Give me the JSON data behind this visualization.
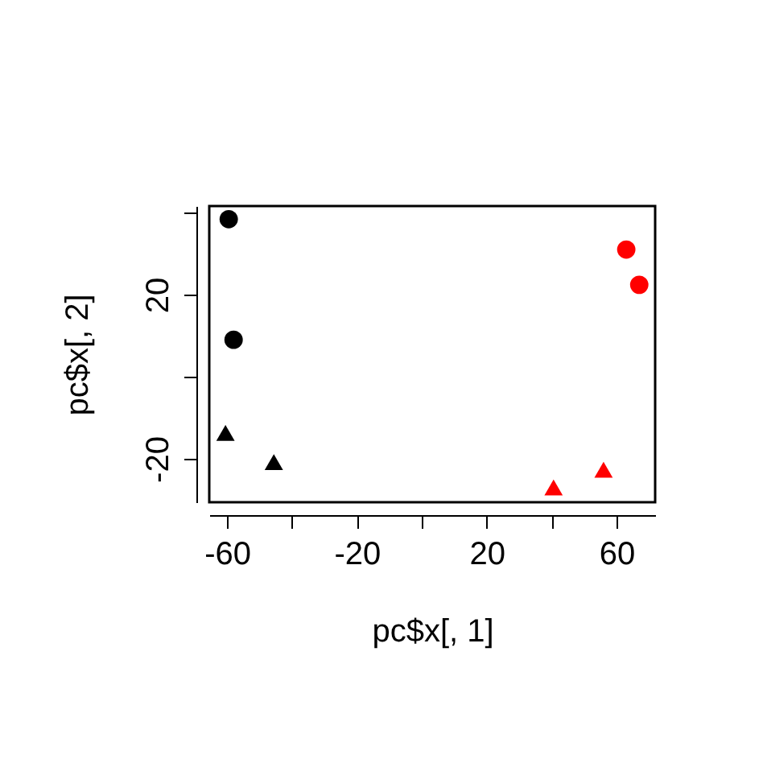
{
  "chart_data": {
    "type": "scatter",
    "xlabel": "pc$x[, 1]",
    "ylabel": "pc$x[, 2]",
    "xlim": [
      -65.5,
      71.9
    ],
    "ylim": [
      -30.6,
      41.6
    ],
    "xticks": [
      -60,
      {
        "value": -40,
        "label": null
      },
      -20,
      {
        "value": 0,
        "label": null
      },
      20,
      {
        "value": 40,
        "label": null
      },
      60
    ],
    "yticks": [
      -20,
      {
        "value": 0,
        "label": null
      },
      20,
      {
        "value": 40,
        "label": null
      }
    ],
    "grid": false,
    "series": [
      {
        "color": "#000000",
        "marker": "circle",
        "x": [
          -59.5,
          -58
        ],
        "values": [
          38.4,
          9
        ]
      },
      {
        "color": "#000000",
        "marker": "triangle",
        "x": [
          -60.5,
          -45.6
        ],
        "values": [
          -13.7,
          -20.8
        ]
      },
      {
        "color": "#ff0000",
        "marker": "triangle",
        "x": [
          40.6,
          56
        ],
        "values": [
          -27,
          -22.7
        ]
      },
      {
        "color": "#ff0000",
        "marker": "circle",
        "x": [
          63,
          67
        ],
        "values": [
          31,
          22.4
        ]
      }
    ]
  }
}
